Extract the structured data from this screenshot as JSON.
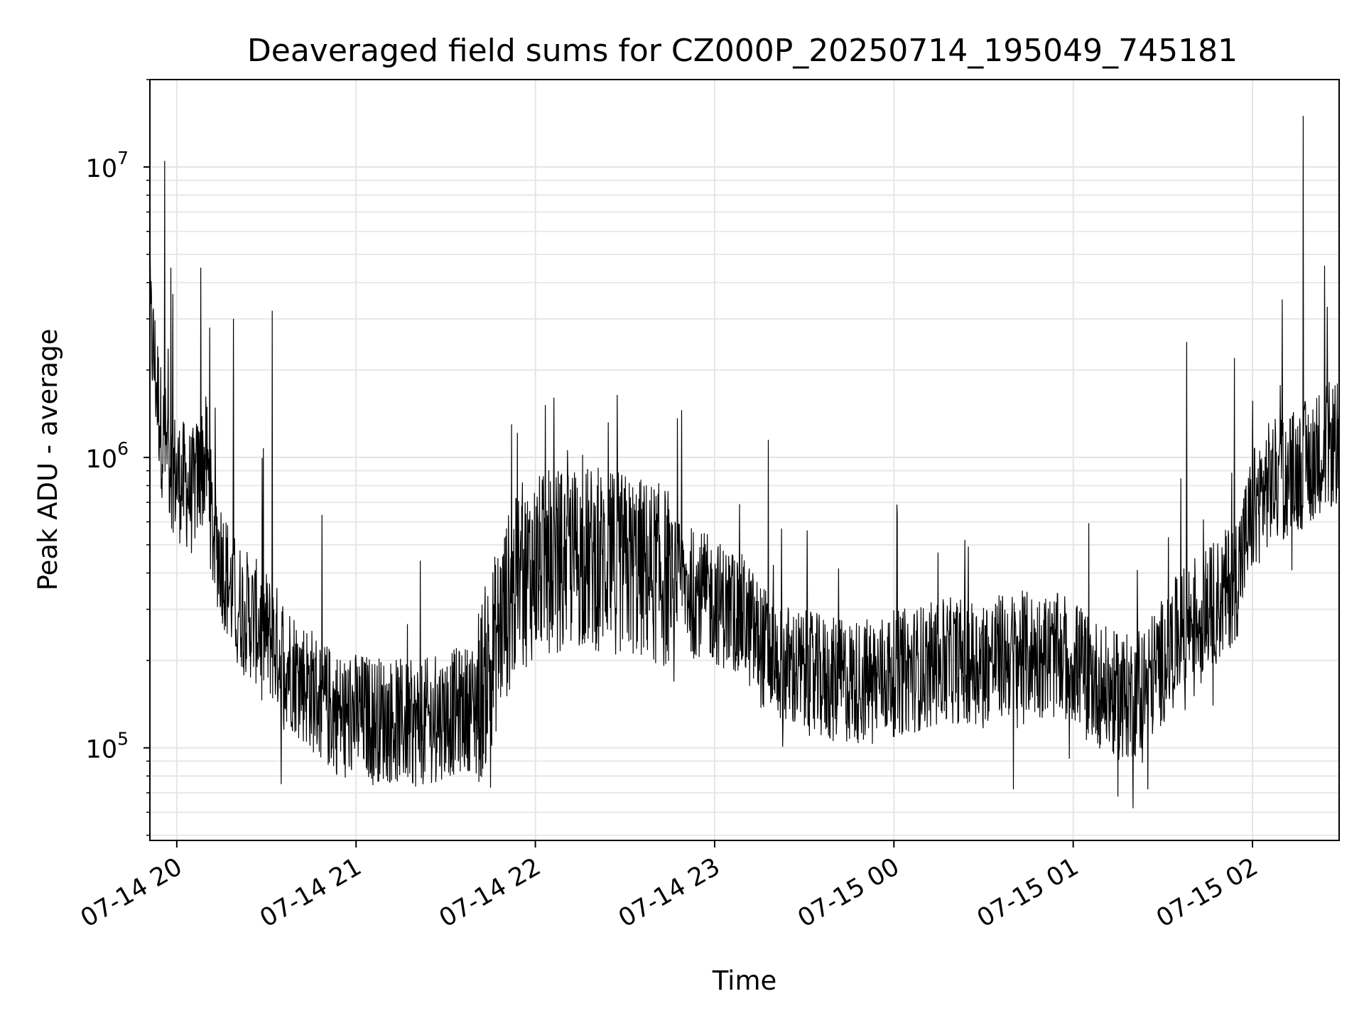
{
  "chart_data": {
    "type": "line",
    "title": "Deaveraged field sums for CZ000P_20250714_195049_745181",
    "xlabel": "Time",
    "ylabel": "Peak ADU - average",
    "yscale": "log",
    "ylim": [
      48000,
      20000000
    ],
    "xlim": [
      "07-14 19:51",
      "07-15 02:29"
    ],
    "grid": true,
    "line_color": "#000000",
    "x_ticks": [
      "07-14 20",
      "07-14 21",
      "07-14 22",
      "07-14 23",
      "07-15 00",
      "07-15 01",
      "07-15 02"
    ],
    "y_ticks": [
      {
        "base": "10",
        "exp": "5"
      },
      {
        "base": "10",
        "exp": "6"
      },
      {
        "base": "10",
        "exp": "7"
      }
    ],
    "series": [
      {
        "values_sampled": true,
        "points": [
          [
            "07-14 19:51",
            3000000
          ],
          [
            "07-14 19:53",
            1900000
          ],
          [
            "07-14 19:55",
            1200000
          ],
          [
            "07-14 19:58",
            950000
          ],
          [
            "07-14 20:00",
            850000
          ],
          [
            "07-14 20:03",
            800000
          ],
          [
            "07-14 20:05",
            750000
          ],
          [
            "07-14 20:08",
            900000
          ],
          [
            "07-14 20:10",
            1000000
          ],
          [
            "07-14 20:12",
            550000
          ],
          [
            "07-14 20:15",
            450000
          ],
          [
            "07-14 20:18",
            350000
          ],
          [
            "07-14 20:20",
            320000
          ],
          [
            "07-14 20:25",
            280000
          ],
          [
            "07-14 20:30",
            250000
          ],
          [
            "07-14 20:35",
            210000
          ],
          [
            "07-14 20:40",
            180000
          ],
          [
            "07-14 20:45",
            160000
          ],
          [
            "07-14 20:50",
            140000
          ],
          [
            "07-14 20:55",
            130000
          ],
          [
            "07-14 21:00",
            130000
          ],
          [
            "07-14 21:10",
            125000
          ],
          [
            "07-14 21:20",
            120000
          ],
          [
            "07-14 21:30",
            130000
          ],
          [
            "07-14 21:40",
            140000
          ],
          [
            "07-14 21:45",
            200000
          ],
          [
            "07-14 21:50",
            300000
          ],
          [
            "07-14 21:55",
            380000
          ],
          [
            "07-14 22:00",
            420000
          ],
          [
            "07-14 22:10",
            450000
          ],
          [
            "07-14 22:20",
            450000
          ],
          [
            "07-14 22:30",
            430000
          ],
          [
            "07-14 22:40",
            400000
          ],
          [
            "07-14 22:50",
            360000
          ],
          [
            "07-14 23:00",
            320000
          ],
          [
            "07-14 23:10",
            280000
          ],
          [
            "07-14 23:15",
            230000
          ],
          [
            "07-14 23:20",
            200000
          ],
          [
            "07-14 23:30",
            180000
          ],
          [
            "07-14 23:40",
            170000
          ],
          [
            "07-14 23:50",
            170000
          ],
          [
            "07-15 00:00",
            180000
          ],
          [
            "07-15 00:10",
            190000
          ],
          [
            "07-15 00:20",
            200000
          ],
          [
            "07-15 00:30",
            200000
          ],
          [
            "07-15 00:40",
            210000
          ],
          [
            "07-15 00:50",
            210000
          ],
          [
            "07-15 01:00",
            200000
          ],
          [
            "07-15 01:05",
            180000
          ],
          [
            "07-15 01:10",
            160000
          ],
          [
            "07-15 01:15",
            150000
          ],
          [
            "07-15 01:20",
            150000
          ],
          [
            "07-15 01:25",
            170000
          ],
          [
            "07-15 01:30",
            200000
          ],
          [
            "07-15 01:35",
            240000
          ],
          [
            "07-15 01:40",
            280000
          ],
          [
            "07-15 01:45",
            300000
          ],
          [
            "07-15 01:50",
            330000
          ],
          [
            "07-15 01:55",
            400000
          ],
          [
            "07-15 02:00",
            650000
          ],
          [
            "07-15 02:05",
            800000
          ],
          [
            "07-15 02:10",
            850000
          ],
          [
            "07-15 02:15",
            900000
          ],
          [
            "07-15 02:20",
            1000000
          ],
          [
            "07-15 02:25",
            1100000
          ],
          [
            "07-15 02:29",
            1100000
          ]
        ],
        "peaks": [
          [
            "07-14 19:56",
            10500000
          ],
          [
            "07-14 19:58",
            4500000
          ],
          [
            "07-14 20:08",
            4500000
          ],
          [
            "07-14 20:11",
            2800000
          ],
          [
            "07-14 20:19",
            3000000
          ],
          [
            "07-14 20:32",
            3200000
          ],
          [
            "07-14 21:52",
            1300000
          ],
          [
            "07-14 23:18",
            1150000
          ],
          [
            "07-15 01:38",
            2500000
          ],
          [
            "07-15 01:54",
            2200000
          ],
          [
            "07-15 02:10",
            3500000
          ],
          [
            "07-15 02:17",
            15000000
          ],
          [
            "07-15 02:25",
            3300000
          ]
        ],
        "troughs": [
          [
            "07-14 20:35",
            75000
          ],
          [
            "07-14 21:45",
            73000
          ],
          [
            "07-15 00:40",
            72000
          ],
          [
            "07-15 01:15",
            68000
          ],
          [
            "07-15 01:20",
            62000
          ],
          [
            "07-15 01:25",
            72000
          ]
        ]
      }
    ]
  }
}
